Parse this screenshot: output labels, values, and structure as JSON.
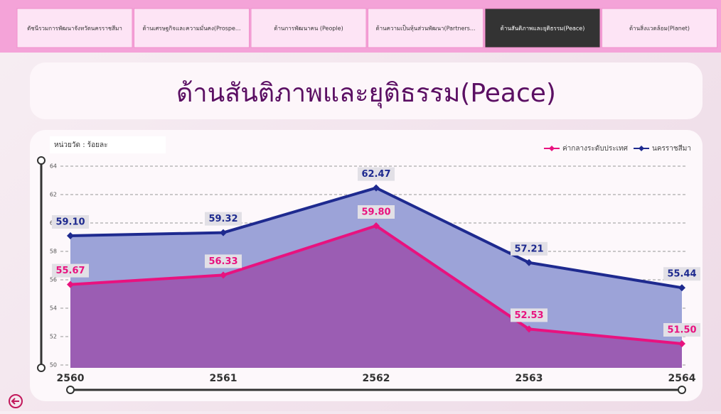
{
  "nav": {
    "tabs": [
      "ดัชนีรวมการพัฒนาจังหวัดนครราชสีมา",
      "ด้านเศรษฐกิจและความมั่นคง(Prospe...",
      "ด้านการพัฒนาคน (People)",
      "ด้านความเป็นหุ้นส่วนพัฒนา(Partners...",
      "ด้านสันติภาพและยุติธรรม(Peace)",
      "ด้านสิ่งแวดล้อม(Planet)"
    ],
    "active": 4
  },
  "header": {
    "title": "ด้านสันติภาพและยุติธรรม(Peace)"
  },
  "chart_data": {
    "type": "area",
    "unit_label": "หน่วยวัด : ร้อยละ",
    "categories": [
      "2560",
      "2561",
      "2562",
      "2563",
      "2564"
    ],
    "series": [
      {
        "name": "ค่ากลางระดับประเทศ",
        "color": "#e8127f",
        "fill": "#9b5db3",
        "values": [
          55.67,
          56.33,
          59.8,
          52.53,
          51.5
        ],
        "value_labels": [
          "55.67",
          "56.33",
          "59.80",
          "52.53",
          "51.50"
        ]
      },
      {
        "name": "นครราชสีมา",
        "color": "#1e2a8f",
        "fill": "#9ca3d8",
        "values": [
          59.1,
          59.32,
          62.47,
          57.21,
          55.44
        ],
        "value_labels": [
          "59.10",
          "59.32",
          "62.47",
          "57.21",
          "55.44"
        ]
      }
    ],
    "ylim": [
      49.8,
      64
    ],
    "yticks": [
      50,
      52,
      54,
      56,
      58,
      60,
      62,
      64
    ],
    "grid": true,
    "legend": "top-right"
  }
}
